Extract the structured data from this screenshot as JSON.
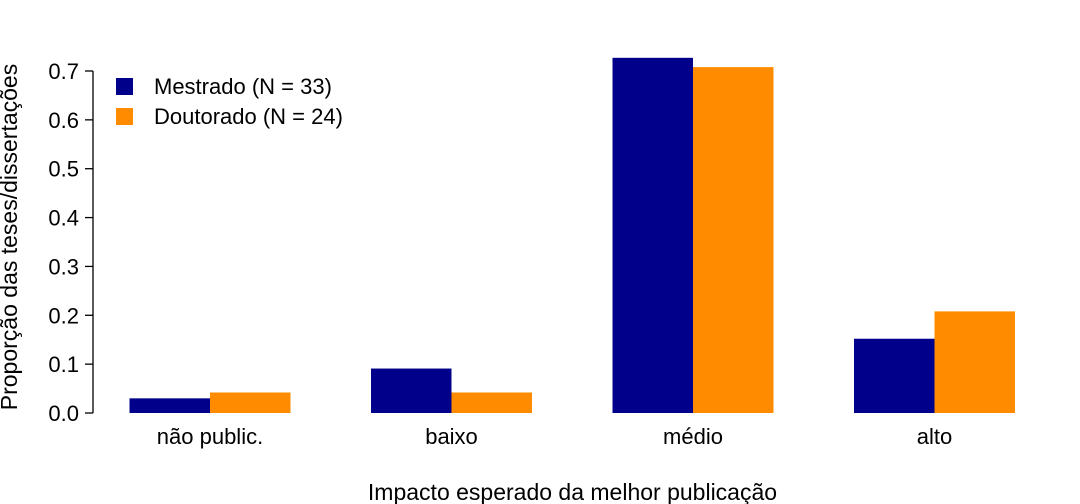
{
  "chart_data": {
    "type": "bar",
    "categories": [
      "não public.",
      "baixo",
      "médio",
      "alto"
    ],
    "series": [
      {
        "name": "Mestrado (N = 33)",
        "color": "#00008B",
        "values": [
          0.03,
          0.091,
          0.727,
          0.152
        ]
      },
      {
        "name": "Doutorado (N = 24)",
        "color": "#FF8C00",
        "values": [
          0.042,
          0.042,
          0.708,
          0.208
        ]
      }
    ],
    "yticks": [
      "0.0",
      "0.1",
      "0.2",
      "0.3",
      "0.4",
      "0.5",
      "0.6",
      "0.7"
    ],
    "ylim": [
      0,
      0.7
    ],
    "xlabel": "Impacto esperado da melhor publicação",
    "ylabel": "Proporção das teses/dissertações",
    "legend_position": "top-left",
    "grid": false
  }
}
